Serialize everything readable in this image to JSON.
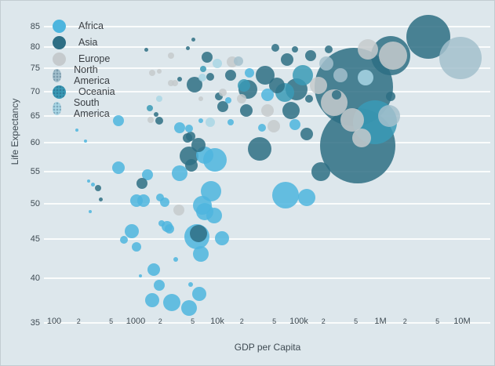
{
  "chart_data": {
    "type": "scatter",
    "title": "",
    "xlabel": "GDP per Capita",
    "ylabel": "Life Expectancy",
    "x_scale": "log",
    "y_scale": "log",
    "x_domain": [
      100,
      10000000
    ],
    "y_domain": [
      35,
      85
    ],
    "grid": "horizontal-only",
    "legend_position": "top-left",
    "background_color": "#dde7ec",
    "grid_color": "#ffffff",
    "text_color": "#3e4a52",
    "x_ticks": [
      {
        "value": 100,
        "label": "100",
        "major": true
      },
      {
        "value": 200,
        "label": "2",
        "major": false
      },
      {
        "value": 500,
        "label": "5",
        "major": false
      },
      {
        "value": 1000,
        "label": "1000",
        "major": true
      },
      {
        "value": 2000,
        "label": "2",
        "major": false
      },
      {
        "value": 5000,
        "label": "5",
        "major": false
      },
      {
        "value": 10000,
        "label": "10k",
        "major": true
      },
      {
        "value": 20000,
        "label": "2",
        "major": false
      },
      {
        "value": 50000,
        "label": "5",
        "major": false
      },
      {
        "value": 100000,
        "label": "100k",
        "major": true
      },
      {
        "value": 200000,
        "label": "2",
        "major": false
      },
      {
        "value": 500000,
        "label": "5",
        "major": false
      },
      {
        "value": 1000000,
        "label": "1M",
        "major": true
      },
      {
        "value": 2000000,
        "label": "2",
        "major": false
      },
      {
        "value": 5000000,
        "label": "5",
        "major": false
      },
      {
        "value": 10000000,
        "label": "10M",
        "major": true
      }
    ],
    "y_ticks": [
      {
        "value": 85,
        "label": "85"
      },
      {
        "value": 80,
        "label": "80"
      },
      {
        "value": 75,
        "label": "75"
      },
      {
        "value": 70,
        "label": "70"
      },
      {
        "value": 65,
        "label": "65"
      },
      {
        "value": 60,
        "label": "60"
      },
      {
        "value": 55,
        "label": "55"
      },
      {
        "value": 50,
        "label": "50"
      },
      {
        "value": 45,
        "label": "45"
      },
      {
        "value": 40,
        "label": "40"
      },
      {
        "value": 35,
        "label": "35"
      }
    ],
    "point_format": [
      "gdp_per_capita",
      "life_expectancy",
      "radius_px"
    ],
    "series": [
      {
        "name": "Africa",
        "key": "africa",
        "color": "#4db5de",
        "textured": false,
        "points": [
          [
            190,
            62.3,
            2
          ],
          [
            243,
            60.4,
            2
          ],
          [
            265,
            53.5,
            2
          ],
          [
            302,
            53.0,
            2.5
          ],
          [
            277,
            48.9,
            2
          ],
          [
            614,
            64.1,
            7
          ],
          [
            3451,
            62.8,
            7
          ],
          [
            4508,
            62.6,
            5
          ],
          [
            13630,
            68.2,
            4
          ],
          [
            24790,
            74.0,
            6
          ],
          [
            41210,
            69.3,
            8
          ],
          [
            35320,
            62.8,
            5
          ],
          [
            89540,
            63.4,
            7
          ],
          [
            14550,
            63.8,
            4
          ],
          [
            6281,
            64.1,
            3
          ],
          [
            68680,
            51.3,
            17
          ],
          [
            124800,
            50.9,
            11
          ],
          [
            614,
            55.7,
            8
          ],
          [
            1393,
            54.6,
            7
          ],
          [
            3451,
            54.8,
            10
          ],
          [
            7015,
            57.8,
            11
          ],
          [
            9354,
            57.0,
            15
          ],
          [
            8375,
            51.9,
            13
          ],
          [
            1023,
            50.5,
            8
          ],
          [
            1248,
            50.5,
            8
          ],
          [
            1986,
            51.0,
            5
          ],
          [
            2270,
            50.2,
            6
          ],
          [
            6562,
            49.8,
            12
          ],
          [
            7015,
            48.9,
            11
          ],
          [
            9150,
            48.3,
            10
          ],
          [
            2075,
            47.2,
            4
          ],
          [
            2426,
            46.7,
            7
          ],
          [
            2591,
            46.4,
            6
          ],
          [
            895,
            46.1,
            9
          ],
          [
            718,
            44.9,
            5
          ],
          [
            1023,
            44.0,
            6
          ],
          [
            5623,
            45.3,
            16
          ],
          [
            11430,
            45.1,
            9
          ],
          [
            6281,
            43.0,
            10
          ],
          [
            3090,
            42.3,
            3
          ],
          [
            1664,
            41.1,
            8
          ],
          [
            1143,
            40.3,
            2
          ],
          [
            1941,
            39.2,
            7
          ],
          [
            4710,
            39.3,
            3
          ],
          [
            6012,
            38.2,
            9
          ],
          [
            1592,
            37.5,
            9
          ],
          [
            2767,
            37.2,
            11
          ],
          [
            4508,
            36.6,
            10
          ]
        ]
      },
      {
        "name": "Asia",
        "key": "asia",
        "color": "#2e6e84",
        "textured": false,
        "points": [
          [
            345,
            52.4,
            4
          ],
          [
            377,
            50.7,
            2.5
          ],
          [
            1334,
            79.4,
            2.5
          ],
          [
            1941,
            64.1,
            5
          ],
          [
            3451,
            72.6,
            3
          ],
          [
            4315,
            79.6,
            2.5
          ],
          [
            5261,
            71.4,
            10
          ],
          [
            4710,
            61.2,
            6
          ],
          [
            7499,
            77.6,
            7
          ],
          [
            8185,
            73.1,
            5
          ],
          [
            14550,
            73.5,
            7
          ],
          [
            10450,
            69.0,
            5
          ],
          [
            22690,
            66.1,
            8
          ],
          [
            11680,
            66.9,
            7
          ],
          [
            5035,
            81.7,
            2.5
          ],
          [
            1780,
            65.3,
            3
          ],
          [
            38620,
            73.5,
            12
          ],
          [
            53830,
            71.3,
            10
          ],
          [
            93580,
            70.4,
            14
          ],
          [
            71780,
            77.0,
            8
          ],
          [
            139300,
            77.9,
            7
          ],
          [
            51500,
            79.8,
            5
          ],
          [
            89540,
            79.4,
            4
          ],
          [
            231800,
            79.4,
            5
          ],
          [
            80170,
            66.1,
            11
          ],
          [
            124800,
            61.6,
            8
          ],
          [
            133400,
            68.5,
            5
          ],
          [
            23710,
            70.4,
            12
          ],
          [
            33030,
            59.0,
            15
          ],
          [
            185800,
            55.0,
            12
          ],
          [
            471000,
            70.9,
            50
          ],
          [
            526000,
            59.5,
            48
          ],
          [
            1334000,
            77.9,
            25
          ],
          [
            3864000,
            82.4,
            28
          ],
          [
            289600,
            69.3,
            6
          ],
          [
            1334000,
            69.0,
            6
          ],
          [
            4508,
            57.7,
            12
          ],
          [
            4817,
            56.1,
            8
          ],
          [
            5876,
            59.7,
            9
          ],
          [
            4315,
            60.9,
            6
          ],
          [
            1194,
            53.1,
            7
          ],
          [
            5876,
            45.7,
            11
          ]
        ]
      },
      {
        "name": "Europe",
        "key": "europe",
        "color": "#c5cacd",
        "textured": false,
        "points": [
          [
            1531,
            64.3,
            4
          ],
          [
            1592,
            74.0,
            4
          ],
          [
            1941,
            74.4,
            3
          ],
          [
            2710,
            77.9,
            4
          ],
          [
            2710,
            71.8,
            4
          ],
          [
            3026,
            71.8,
            4
          ],
          [
            6281,
            68.5,
            3
          ],
          [
            11680,
            69.8,
            5
          ],
          [
            15240,
            76.5,
            7
          ],
          [
            19870,
            68.5,
            6
          ],
          [
            49200,
            63.1,
            8
          ],
          [
            41210,
            66.1,
            8
          ],
          [
            173800,
            71.3,
            11
          ],
          [
            271000,
            67.7,
            17
          ],
          [
            450800,
            64.3,
            15
          ],
          [
            587500,
            60.9,
            12
          ],
          [
            1426000,
            77.9,
            18
          ],
          [
            701500,
            79.4,
            13
          ],
          [
            3380,
            49.1,
            7
          ]
        ]
      },
      {
        "name": "North America",
        "key": "north_america",
        "color": "#a3c0cd",
        "textured": true,
        "points": [
          [
            18200,
            76.7,
            6
          ],
          [
            217100,
            76.1,
            9
          ],
          [
            1276000,
            65.0,
            14
          ],
          [
            9571000,
            77.4,
            27
          ],
          [
            323600,
            73.5,
            9
          ]
        ]
      },
      {
        "name": "Oceania",
        "key": "oceania",
        "color": "#3a9ab6",
        "textured": true,
        "points": [
          [
            1489,
            66.6,
            4
          ],
          [
            6700,
            74.9,
            4
          ],
          [
            21230,
            71.3,
            8
          ],
          [
            67140,
            69.8,
            12
          ],
          [
            111700,
            73.5,
            13
          ],
          [
            856400,
            63.8,
            28
          ]
        ]
      },
      {
        "name": "South America",
        "key": "south_america",
        "color": "#a9d6e5",
        "textured": true,
        "points": [
          [
            1941,
            68.5,
            4
          ],
          [
            6562,
            73.0,
            5
          ],
          [
            10000,
            76.1,
            6
          ],
          [
            8185,
            63.8,
            6
          ],
          [
            656100,
            73.0,
            10
          ]
        ]
      }
    ]
  }
}
